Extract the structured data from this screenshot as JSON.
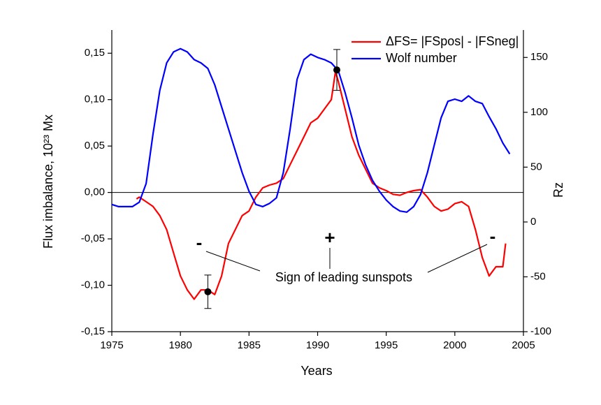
{
  "chart_data": {
    "type": "line",
    "xlabel": "Years",
    "ylabel": "Flux imbalance, 10²³ Mx",
    "y2label": "Rz",
    "xlim": [
      1975,
      2005
    ],
    "xticks": [
      1975,
      1980,
      1985,
      1990,
      1995,
      2000,
      2005
    ],
    "ylim": [
      -0.15,
      0.175
    ],
    "yticks": [
      {
        "value": -0.15,
        "label": "-0,15"
      },
      {
        "value": -0.1,
        "label": "-0,10"
      },
      {
        "value": -0.05,
        "label": "-0,05"
      },
      {
        "value": 0,
        "label": "0,00"
      },
      {
        "value": 0.05,
        "label": "0,05"
      },
      {
        "value": 0.1,
        "label": "0,10"
      },
      {
        "value": 0.15,
        "label": "0,15"
      }
    ],
    "y2lim": [
      -100,
      175
    ],
    "y2ticks": [
      -100,
      -50,
      0,
      50,
      100,
      150
    ],
    "legend": "upper right",
    "series": [
      {
        "name": "ΔFS= |FSpos| - |FSneg|",
        "color": "#ff0000",
        "x": [
          1976.8,
          1977,
          1977.5,
          1978,
          1978.5,
          1979,
          1979.5,
          1980,
          1980.5,
          1981,
          1981.5,
          1982,
          1982.5,
          1983,
          1983.5,
          1984,
          1984.5,
          1985,
          1985.5,
          1986,
          1986.5,
          1987,
          1987.5,
          1988,
          1988.5,
          1989,
          1989.5,
          1990,
          1990.5,
          1991,
          1991.3,
          1991.5,
          1992,
          1992.5,
          1993,
          1993.5,
          1994,
          1994.5,
          1995,
          1995.5,
          1996,
          1996.5,
          1997,
          1997.5,
          1998,
          1998.5,
          1999,
          1999.5,
          2000,
          2000.5,
          2001,
          2001.5,
          2002,
          2002.5,
          2003,
          2003.5,
          2003.7
        ],
        "values": [
          -0.007,
          -0.005,
          -0.01,
          -0.015,
          -0.025,
          -0.04,
          -0.065,
          -0.09,
          -0.105,
          -0.115,
          -0.105,
          -0.105,
          -0.11,
          -0.09,
          -0.055,
          -0.04,
          -0.025,
          -0.02,
          -0.005,
          0.005,
          0.008,
          0.01,
          0.015,
          0.03,
          0.045,
          0.06,
          0.075,
          0.08,
          0.09,
          0.1,
          0.13,
          0.12,
          0.09,
          0.06,
          0.04,
          0.025,
          0.01,
          0.005,
          0.002,
          -0.002,
          -0.003,
          0,
          0.002,
          0.003,
          -0.005,
          -0.015,
          -0.02,
          -0.018,
          -0.012,
          -0.01,
          -0.015,
          -0.04,
          -0.07,
          -0.09,
          -0.08,
          -0.08,
          -0.055
        ]
      },
      {
        "name": "Wolf number",
        "color": "#0000ff",
        "axis": "y2",
        "x": [
          1975,
          1975.5,
          1976,
          1976.5,
          1977,
          1977.5,
          1978,
          1978.5,
          1979,
          1979.5,
          1980,
          1980.5,
          1981,
          1981.5,
          1982,
          1982.5,
          1983,
          1983.5,
          1984,
          1984.5,
          1985,
          1985.5,
          1986,
          1986.5,
          1987,
          1987.5,
          1988,
          1988.5,
          1989,
          1989.5,
          1990,
          1990.5,
          1991,
          1991.5,
          1992,
          1992.5,
          1993,
          1993.5,
          1994,
          1994.5,
          1995,
          1995.5,
          1996,
          1996.5,
          1997,
          1997.5,
          1998,
          1998.5,
          1999,
          1999.5,
          2000,
          2000.5,
          2001,
          2001.5,
          2002,
          2002.5,
          2003,
          2003.5,
          2004
        ],
        "values": [
          16,
          14,
          14,
          14,
          18,
          35,
          80,
          120,
          145,
          155,
          158,
          155,
          148,
          145,
          140,
          125,
          105,
          85,
          65,
          45,
          28,
          16,
          14,
          17,
          22,
          45,
          85,
          130,
          148,
          153,
          150,
          148,
          145,
          138,
          118,
          95,
          70,
          52,
          38,
          28,
          20,
          14,
          10,
          9,
          14,
          25,
          45,
          70,
          95,
          110,
          112,
          110,
          115,
          110,
          108,
          96,
          85,
          72,
          62
        ]
      }
    ],
    "error_points": {
      "x": [
        1982,
        1991.4
      ],
      "values": [
        -0.107,
        0.132
      ],
      "errors": [
        0.018,
        0.022
      ]
    },
    "annotations": [
      "Sign of leading sunspots",
      "-",
      "+",
      "-"
    ]
  }
}
